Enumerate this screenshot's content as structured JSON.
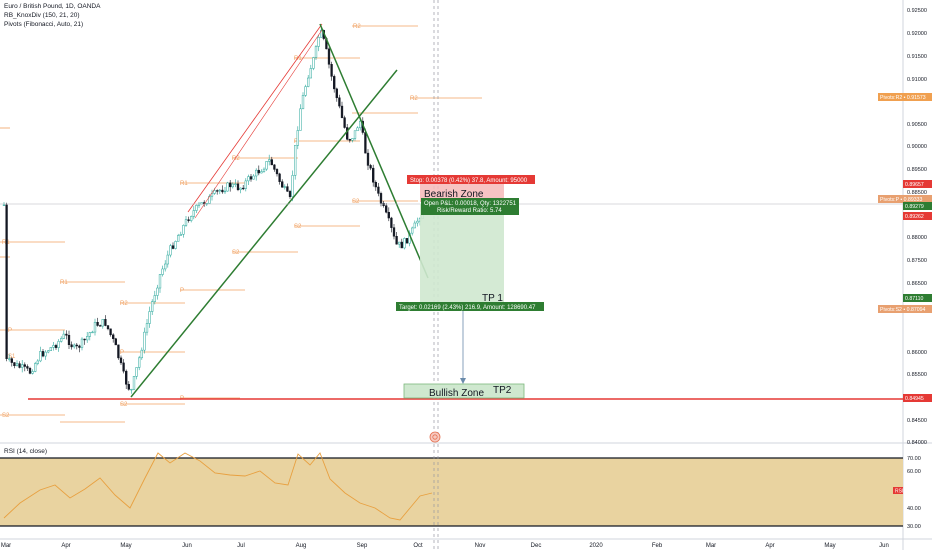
{
  "header": {
    "symbol_line": "Euro / British Pound, 1D, OANDA",
    "indicator1": "RB_KnoxDiv (150, 21, 20)",
    "indicator2": "Pivots (Fibonacci, Auto, 21)",
    "rsi_label": "RSI (14, close)"
  },
  "price_axis": {
    "ticks": [
      "0.92500",
      "0.92000",
      "0.91500",
      "0.91000",
      "0.90500",
      "0.90000",
      "0.89500",
      "0.88500",
      "0.88000",
      "0.87500",
      "0.86500",
      "0.86000",
      "0.85500",
      "0.85000",
      "0.84500",
      "0.84000"
    ],
    "badges": [
      {
        "text": "Pivots:R2 • 0.91573",
        "color": "#f0a050"
      },
      {
        "text": "0.89657",
        "color": "#e53935"
      },
      {
        "text": "Pivots:P • 0.89333",
        "color": "#e8a070"
      },
      {
        "text": "0.89279",
        "color": "#2e7d32"
      },
      {
        "text": "0.89262",
        "color": "#e53935"
      },
      {
        "text": "0.87110",
        "color": "#2e7d32"
      },
      {
        "text": "Pivots:S2 • 0.87094",
        "color": "#e8a070"
      },
      {
        "text": "0.84945",
        "color": "#e53935"
      }
    ]
  },
  "rsi_axis": {
    "ticks": [
      "70.00",
      "60.00",
      "40.00",
      "30.00"
    ],
    "badge": "RSI • 50.59"
  },
  "time_axis": [
    "Mar",
    "Apr",
    "May",
    "Jun",
    "Jul",
    "Aug",
    "Sep",
    "Oct",
    "Nov",
    "Dec",
    "2020",
    "Feb",
    "Mar",
    "Apr",
    "May",
    "Jun"
  ],
  "trade": {
    "stop_label": "Stop: 0.00378 (0.42%) 37.8, Amount: 95000",
    "open_label": "Open P&L: 0.00018, Qty: 1322751",
    "rr_label": "Risk/Reward Ratio: 5.74",
    "target_label": "Target: 0.02169 (2.43%) 216.9, Amount: 128690.47"
  },
  "annotations": {
    "bearish_zone": "Bearish Zone",
    "bullish_zone": "Bullish Zone",
    "tp1": "TP 1",
    "tp2": "TP2"
  },
  "pivot_labels": [
    "R2",
    "R1",
    "R2",
    "S2",
    "P",
    "R1",
    "S2",
    "R2",
    "P",
    "R2",
    "S2",
    "P",
    "R1",
    "S2",
    "P",
    "S1",
    "R1",
    "P",
    "S2"
  ],
  "colors": {
    "red": "#e53935",
    "green_line": "#2e7d32",
    "pivot": "#f0a060",
    "rsi_fill": "#e9d3a0",
    "rsi_line": "#e8a040",
    "profit_zone": "#cfe8cf",
    "loss_zone": "#f6b8b8"
  }
}
